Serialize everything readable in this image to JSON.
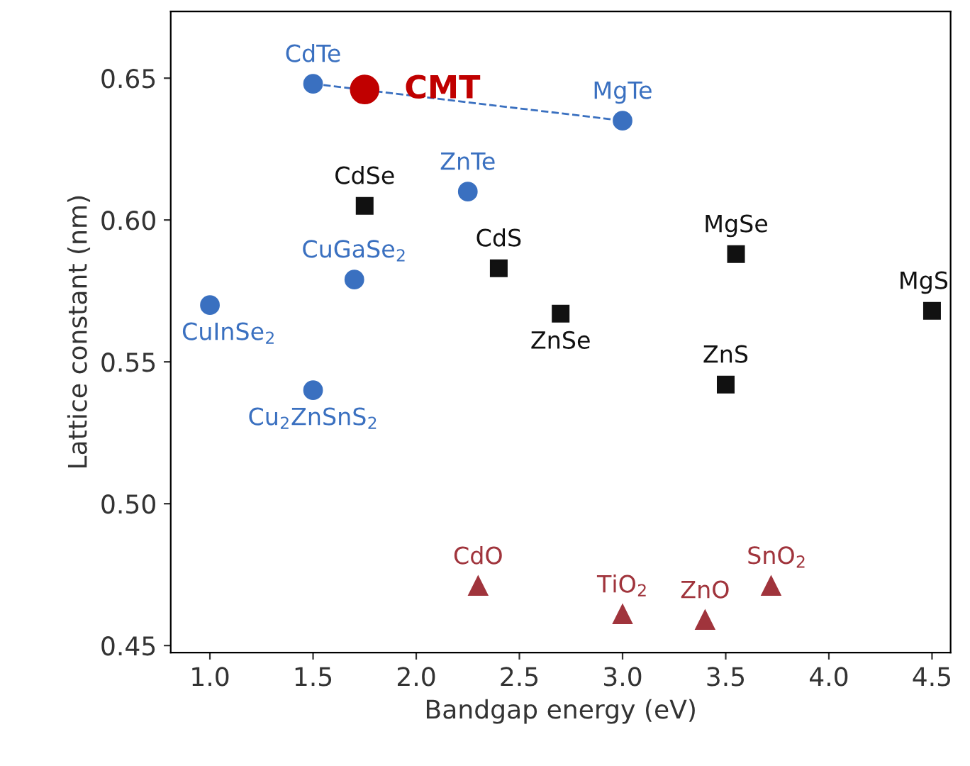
{
  "chart_data": {
    "type": "scatter",
    "xlabel": "Bandgap energy (eV)",
    "ylabel": "Lattice constant (nm)",
    "xlim": [
      0.81,
      4.59
    ],
    "ylim": [
      0.4475,
      0.6735
    ],
    "xticks": [
      {
        "value": 1.0,
        "label": "1.0"
      },
      {
        "value": 1.5,
        "label": "1.5"
      },
      {
        "value": 2.0,
        "label": "2.0"
      },
      {
        "value": 2.5,
        "label": "2.5"
      },
      {
        "value": 3.0,
        "label": "3.0"
      },
      {
        "value": 3.5,
        "label": "3.5"
      },
      {
        "value": 4.0,
        "label": "4.0"
      },
      {
        "value": 4.5,
        "label": "4.5"
      }
    ],
    "yticks": [
      {
        "value": 0.45,
        "label": "0.45"
      },
      {
        "value": 0.5,
        "label": "0.50"
      },
      {
        "value": 0.55,
        "label": "0.55"
      },
      {
        "value": 0.6,
        "label": "0.60"
      },
      {
        "value": 0.65,
        "label": "0.65"
      }
    ],
    "grid": false,
    "legend": false,
    "series": [
      {
        "type": "line",
        "line_style": "dashed",
        "marker": "none",
        "color": "#3a70c0",
        "x": [
          1.5,
          3.0
        ],
        "values": [
          0.648,
          0.635
        ]
      },
      {
        "marker": "circle",
        "color": "#3a70c0",
        "x": [
          1.5,
          3.0,
          2.25,
          1.7,
          1.0,
          1.5
        ],
        "values": [
          0.648,
          0.635,
          0.61,
          0.579,
          0.57,
          0.54
        ]
      },
      {
        "marker": "square",
        "color": "#111111",
        "x": [
          1.75,
          2.4,
          2.7,
          3.55,
          3.5,
          4.5
        ],
        "values": [
          0.605,
          0.583,
          0.567,
          0.588,
          0.542,
          0.568
        ]
      },
      {
        "marker": "triangle",
        "color": "#a0343c",
        "x": [
          2.3,
          3.0,
          3.4,
          3.72
        ],
        "values": [
          0.471,
          0.461,
          0.459,
          0.471
        ]
      },
      {
        "marker": "circle",
        "color": "#c00000",
        "x": [
          1.75
        ],
        "values": [
          0.646
        ]
      }
    ],
    "annotations": [
      {
        "text": "CdTe",
        "x": 1.5,
        "y": 0.648
      },
      {
        "text": "CMT",
        "x": 1.75,
        "y": 0.646
      },
      {
        "text": "MgTe",
        "x": 3.0,
        "y": 0.635
      },
      {
        "text": "ZnTe",
        "x": 2.25,
        "y": 0.61
      },
      {
        "text": "CuGaSe$_{2}$",
        "x": 1.7,
        "y": 0.579
      },
      {
        "text": "CuInSe$_{2}$",
        "x": 1.0,
        "y": 0.57
      },
      {
        "text": "Cu$_{2}$ZnSnS$_{2}$",
        "x": 1.5,
        "y": 0.54
      },
      {
        "text": "CdSe",
        "x": 1.75,
        "y": 0.605
      },
      {
        "text": "CdS",
        "x": 2.4,
        "y": 0.583
      },
      {
        "text": "ZnSe",
        "x": 2.7,
        "y": 0.567
      },
      {
        "text": "MgSe",
        "x": 3.55,
        "y": 0.588
      },
      {
        "text": "ZnS",
        "x": 3.5,
        "y": 0.542
      },
      {
        "text": "MgS",
        "x": 4.5,
        "y": 0.568
      },
      {
        "text": "CdO",
        "x": 2.3,
        "y": 0.471
      },
      {
        "text": "TiO$_{2}$",
        "x": 3.0,
        "y": 0.461
      },
      {
        "text": "ZnO",
        "x": 3.4,
        "y": 0.459
      },
      {
        "text": "SnO$_{2}$",
        "x": 3.72,
        "y": 0.471
      }
    ]
  }
}
